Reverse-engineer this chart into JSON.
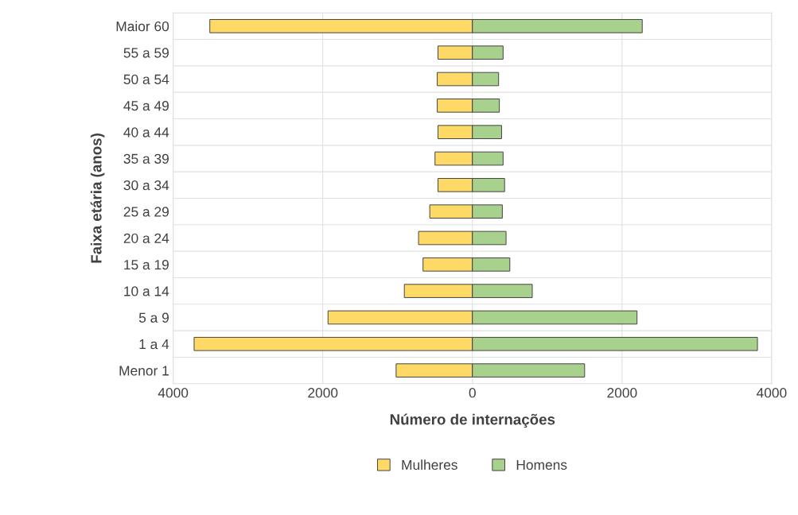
{
  "chart_data": {
    "type": "bar",
    "orientation": "horizontal",
    "xlabel": "Número de internações",
    "ylabel": "Faixa etária (anos)",
    "categories": [
      "Maior 60",
      "55 a 59",
      "50 a 54",
      "45 a 49",
      "40 a 44",
      "35 a 39",
      "30 a 34",
      "25 a 29",
      "20 a 24",
      "15 a 19",
      "10 a 14",
      "5 a 9",
      "1 a 4",
      "Menor 1"
    ],
    "series": [
      {
        "name": "Mulheres",
        "color": "#ffd966",
        "values": [
          -3510,
          -460,
          -470,
          -470,
          -460,
          -500,
          -460,
          -570,
          -720,
          -660,
          -910,
          -1930,
          -3720,
          -1020
        ]
      },
      {
        "name": "Homens",
        "color": "#a9d18e",
        "values": [
          2270,
          410,
          350,
          360,
          390,
          410,
          430,
          400,
          450,
          500,
          800,
          2200,
          3810,
          1500
        ]
      }
    ],
    "xlim": [
      -4000,
      4000
    ],
    "xticks": [
      {
        "value": -4000,
        "label": "4000"
      },
      {
        "value": -2000,
        "label": "2000"
      },
      0,
      2000,
      4000
    ],
    "stacked": true,
    "grid": true,
    "legend": "bottom"
  }
}
